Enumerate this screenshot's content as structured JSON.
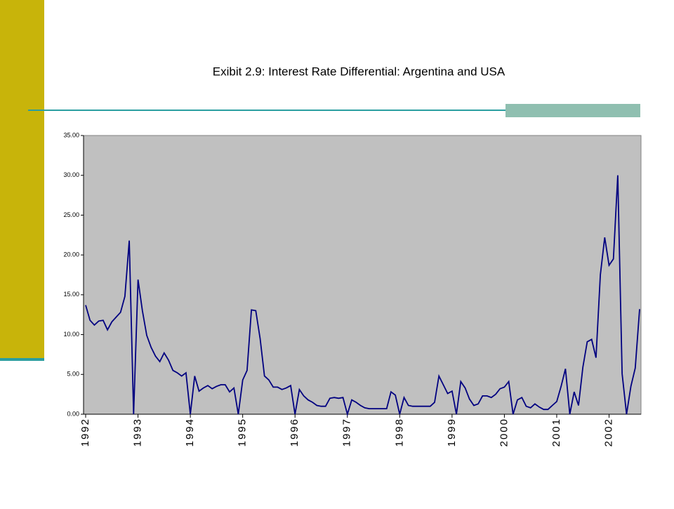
{
  "chart_data": {
    "type": "line",
    "title": "Exibit 2.9:  Interest Rate Differential: Argentina and USA",
    "categories": [
      "1992",
      null,
      null,
      null,
      null,
      null,
      null,
      null,
      null,
      null,
      null,
      null,
      "1993",
      null,
      null,
      null,
      null,
      null,
      null,
      null,
      null,
      null,
      null,
      null,
      "1994",
      null,
      null,
      null,
      null,
      null,
      null,
      null,
      null,
      null,
      null,
      null,
      "1995",
      null,
      null,
      null,
      null,
      null,
      null,
      null,
      null,
      null,
      null,
      null,
      "1996",
      null,
      null,
      null,
      null,
      null,
      null,
      null,
      null,
      null,
      null,
      null,
      "1997",
      null,
      null,
      null,
      null,
      null,
      null,
      null,
      null,
      null,
      null,
      null,
      "1998",
      null,
      null,
      null,
      null,
      null,
      null,
      null,
      null,
      null,
      null,
      null,
      "1999",
      null,
      null,
      null,
      null,
      null,
      null,
      null,
      null,
      null,
      null,
      null,
      "2000",
      null,
      null,
      null,
      null,
      null,
      null,
      null,
      null,
      null,
      null,
      null,
      "2001",
      null,
      null,
      null,
      null,
      null,
      null,
      null,
      null,
      null,
      null,
      null,
      "2002",
      null,
      null,
      null,
      null,
      null,
      null,
      null
    ],
    "series": [
      {
        "color": "#000080",
        "values": [
          13.7,
          11.8,
          11.2,
          11.7,
          11.8,
          10.6,
          11.6,
          12.2,
          12.8,
          14.8,
          21.8,
          0,
          16.9,
          13.0,
          9.9,
          8.4,
          7.3,
          6.6,
          7.7,
          6.8,
          5.5,
          5.2,
          4.8,
          5.2,
          0,
          4.8,
          2.9,
          3.3,
          3.6,
          3.2,
          3.5,
          3.7,
          3.7,
          2.8,
          3.3,
          0,
          4.3,
          5.5,
          13.1,
          13.0,
          9.5,
          4.8,
          4.3,
          3.4,
          3.4,
          3.1,
          3.3,
          3.6,
          0,
          3.1,
          2.3,
          1.8,
          1.5,
          1.1,
          1.0,
          1.0,
          2.0,
          2.1,
          2.0,
          2.1,
          0,
          1.8,
          1.5,
          1.1,
          0.8,
          0.7,
          0.7,
          0.7,
          0.7,
          0.7,
          2.8,
          2.4,
          0,
          2.1,
          1.1,
          1.0,
          1.0,
          1.0,
          1.0,
          1.0,
          1.5,
          4.8,
          3.7,
          2.6,
          2.9,
          0,
          4.1,
          3.3,
          1.9,
          1.1,
          1.3,
          2.3,
          2.3,
          2.1,
          2.5,
          3.2,
          3.4,
          4.1,
          0,
          1.8,
          2.1,
          1.0,
          0.8,
          1.3,
          0.9,
          0.6,
          0.6,
          1.1,
          1.6,
          3.5,
          5.7,
          0,
          2.8,
          1.1,
          5.9,
          9.1,
          9.4,
          7.1,
          17.5,
          22.2,
          18.7,
          19.5,
          30.0,
          5.1,
          0,
          3.5,
          5.8,
          13.2
        ]
      }
    ],
    "ylim": [
      0,
      35
    ],
    "yticks": [
      {
        "value": 0,
        "label": "0.00"
      },
      {
        "value": 5,
        "label": "5.00"
      },
      {
        "value": 10,
        "label": "10.00"
      },
      {
        "value": 15,
        "label": "15.00"
      },
      {
        "value": 20,
        "label": "20.00"
      },
      {
        "value": 25,
        "label": "25.00"
      },
      {
        "value": 30,
        "label": "30.00"
      },
      {
        "value": 35,
        "label": "35.00"
      }
    ]
  }
}
